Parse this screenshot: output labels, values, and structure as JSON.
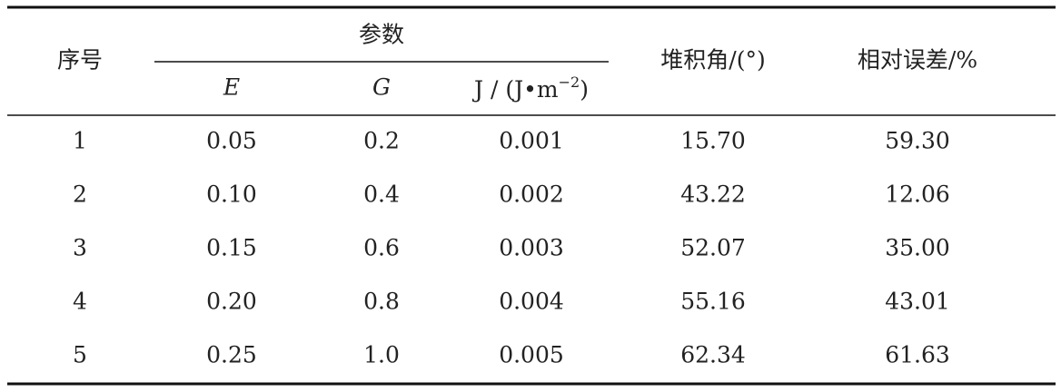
{
  "table": {
    "header": {
      "index": "序号",
      "group": "参数",
      "e": "E",
      "g": "G",
      "j": {
        "main": "J / (J•m",
        "sup": "−2",
        "close": ")"
      },
      "angle": "堆积角/(°)",
      "error": "相对误差/%"
    },
    "rows": [
      [
        "1",
        "0.05",
        "0.2",
        "0.001",
        "15.70",
        "59.30"
      ],
      [
        "2",
        "0.10",
        "0.4",
        "0.002",
        "43.22",
        "12.06"
      ],
      [
        "3",
        "0.15",
        "0.6",
        "0.003",
        "52.07",
        "35.00"
      ],
      [
        "4",
        "0.20",
        "0.8",
        "0.004",
        "55.16",
        "43.01"
      ],
      [
        "5",
        "0.25",
        "1.0",
        "0.005",
        "62.34",
        "61.63"
      ]
    ]
  }
}
